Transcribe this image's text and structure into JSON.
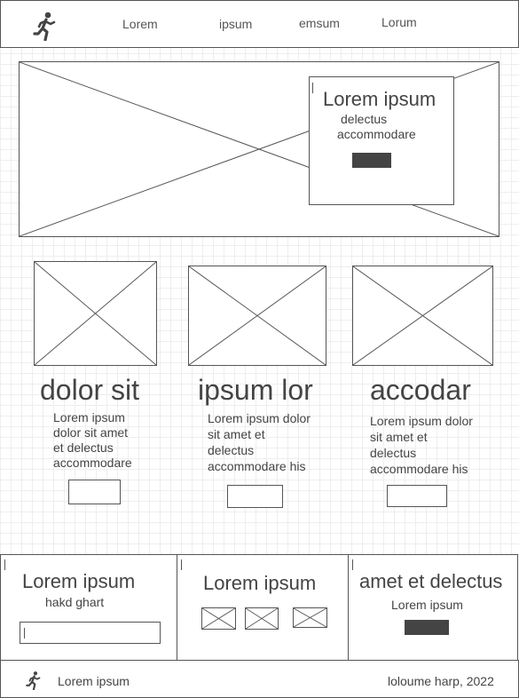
{
  "header": {
    "logo_icon": "running-person-icon",
    "nav": [
      "Lorem",
      "ipsum",
      "emsum",
      "Lorum"
    ]
  },
  "hero": {
    "callout_title": "Lorem ipsum",
    "callout_line1": "delectus",
    "callout_line2": "accommodare"
  },
  "cards": [
    {
      "title": "dolor sit",
      "body": [
        "Lorem ipsum",
        "dolor sit amet",
        "et delectus",
        "accommodare"
      ]
    },
    {
      "title": "ipsum lor",
      "body": [
        "Lorem ipsum dolor",
        "sit amet et",
        "delectus",
        "accommodare his"
      ]
    },
    {
      "title": "accodar",
      "body": [
        "Lorem ipsum dolor",
        "sit amet et",
        "delectus",
        "accommodare his"
      ]
    }
  ],
  "bottom_panels": {
    "left": {
      "title": "Lorem ipsum",
      "subtitle": "hakd ghart"
    },
    "middle": {
      "title": "Lorem ipsum"
    },
    "right": {
      "title": "amet et delectus",
      "subtitle": "Lorem ipsum"
    }
  },
  "footer": {
    "logo_icon": "running-person-icon",
    "left_text": "Lorem ipsum",
    "right_text": "loloume harp, 2022"
  },
  "colors": {
    "stroke": "#555555",
    "button_fill": "#444444",
    "grid": "#eeeeee"
  }
}
